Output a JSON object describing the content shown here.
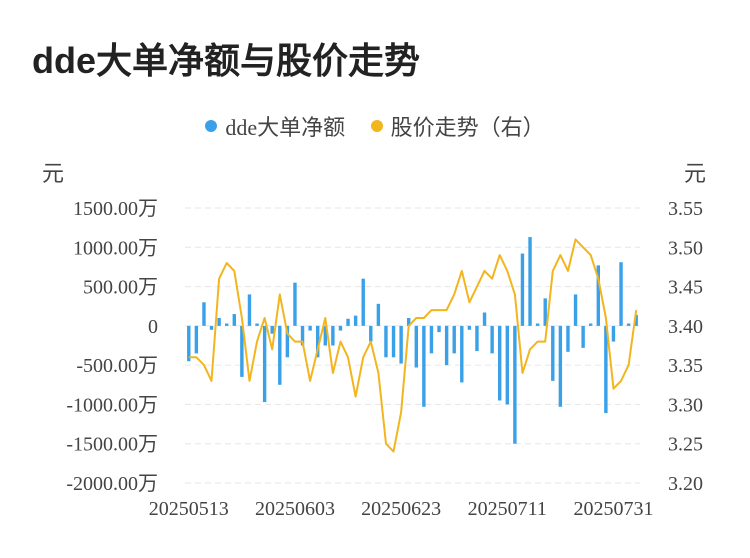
{
  "title": "dde大单净额与股价走势",
  "legend": [
    {
      "label": "dde大单净额",
      "color": "#3aa1e8"
    },
    {
      "label": "股价走势（右）",
      "color": "#f2b51e"
    }
  ],
  "units": {
    "left": "元",
    "right": "元"
  },
  "chart_data": {
    "type": "bar+line",
    "left_axis": {
      "ylim": [
        -2000,
        1500
      ],
      "ticks": [
        1500,
        1000,
        500,
        0,
        -500,
        -1000,
        -1500,
        -2000
      ],
      "tick_labels": [
        "1500.00万",
        "1000.00万",
        "500.00万",
        "0",
        "-500.00万",
        "-1000.00万",
        "-1500.00万",
        "-2000.00万"
      ]
    },
    "right_axis": {
      "ylim": [
        3.2,
        3.55
      ],
      "ticks": [
        3.55,
        3.5,
        3.45,
        3.4,
        3.35,
        3.3,
        3.25,
        3.2
      ],
      "tick_labels": [
        "3.55",
        "3.50",
        "3.45",
        "3.40",
        "3.35",
        "3.30",
        "3.25",
        "3.20"
      ]
    },
    "x_tick_labels": [
      "20250513",
      "20250603",
      "20250623",
      "20250711",
      "20250731"
    ],
    "x_tick_index": [
      0,
      14,
      28,
      42,
      56
    ],
    "grid": true,
    "legend_position": "top-center",
    "series": [
      {
        "name": "dde大单净额",
        "type": "bar",
        "axis": "left",
        "values": [
          -450,
          -350,
          300,
          -50,
          100,
          30,
          150,
          -650,
          400,
          30,
          -970,
          -100,
          -750,
          -400,
          550,
          -250,
          -60,
          -400,
          -250,
          -250,
          -60,
          90,
          130,
          600,
          -200,
          280,
          -400,
          -400,
          -480,
          100,
          -530,
          -1030,
          -350,
          -80,
          -500,
          -350,
          -720,
          -50,
          -320,
          170,
          -350,
          -950,
          -1000,
          -1500,
          920,
          1130,
          30,
          350,
          -700,
          -1030,
          -330,
          400,
          -280,
          30,
          770,
          -1110,
          -200,
          810,
          30,
          140
        ],
        "unit": "万元"
      },
      {
        "name": "股价走势（右）",
        "type": "line",
        "axis": "right",
        "values": [
          3.36,
          3.36,
          3.35,
          3.33,
          3.46,
          3.48,
          3.47,
          3.41,
          3.33,
          3.38,
          3.41,
          3.37,
          3.44,
          3.39,
          3.38,
          3.38,
          3.33,
          3.37,
          3.41,
          3.34,
          3.38,
          3.36,
          3.31,
          3.36,
          3.38,
          3.34,
          3.25,
          3.24,
          3.29,
          3.4,
          3.41,
          3.41,
          3.42,
          3.42,
          3.42,
          3.44,
          3.47,
          3.43,
          3.45,
          3.47,
          3.46,
          3.49,
          3.47,
          3.44,
          3.34,
          3.37,
          3.38,
          3.38,
          3.47,
          3.49,
          3.47,
          3.51,
          3.5,
          3.49,
          3.46,
          3.41,
          3.32,
          3.33,
          3.35,
          3.42
        ]
      }
    ]
  }
}
